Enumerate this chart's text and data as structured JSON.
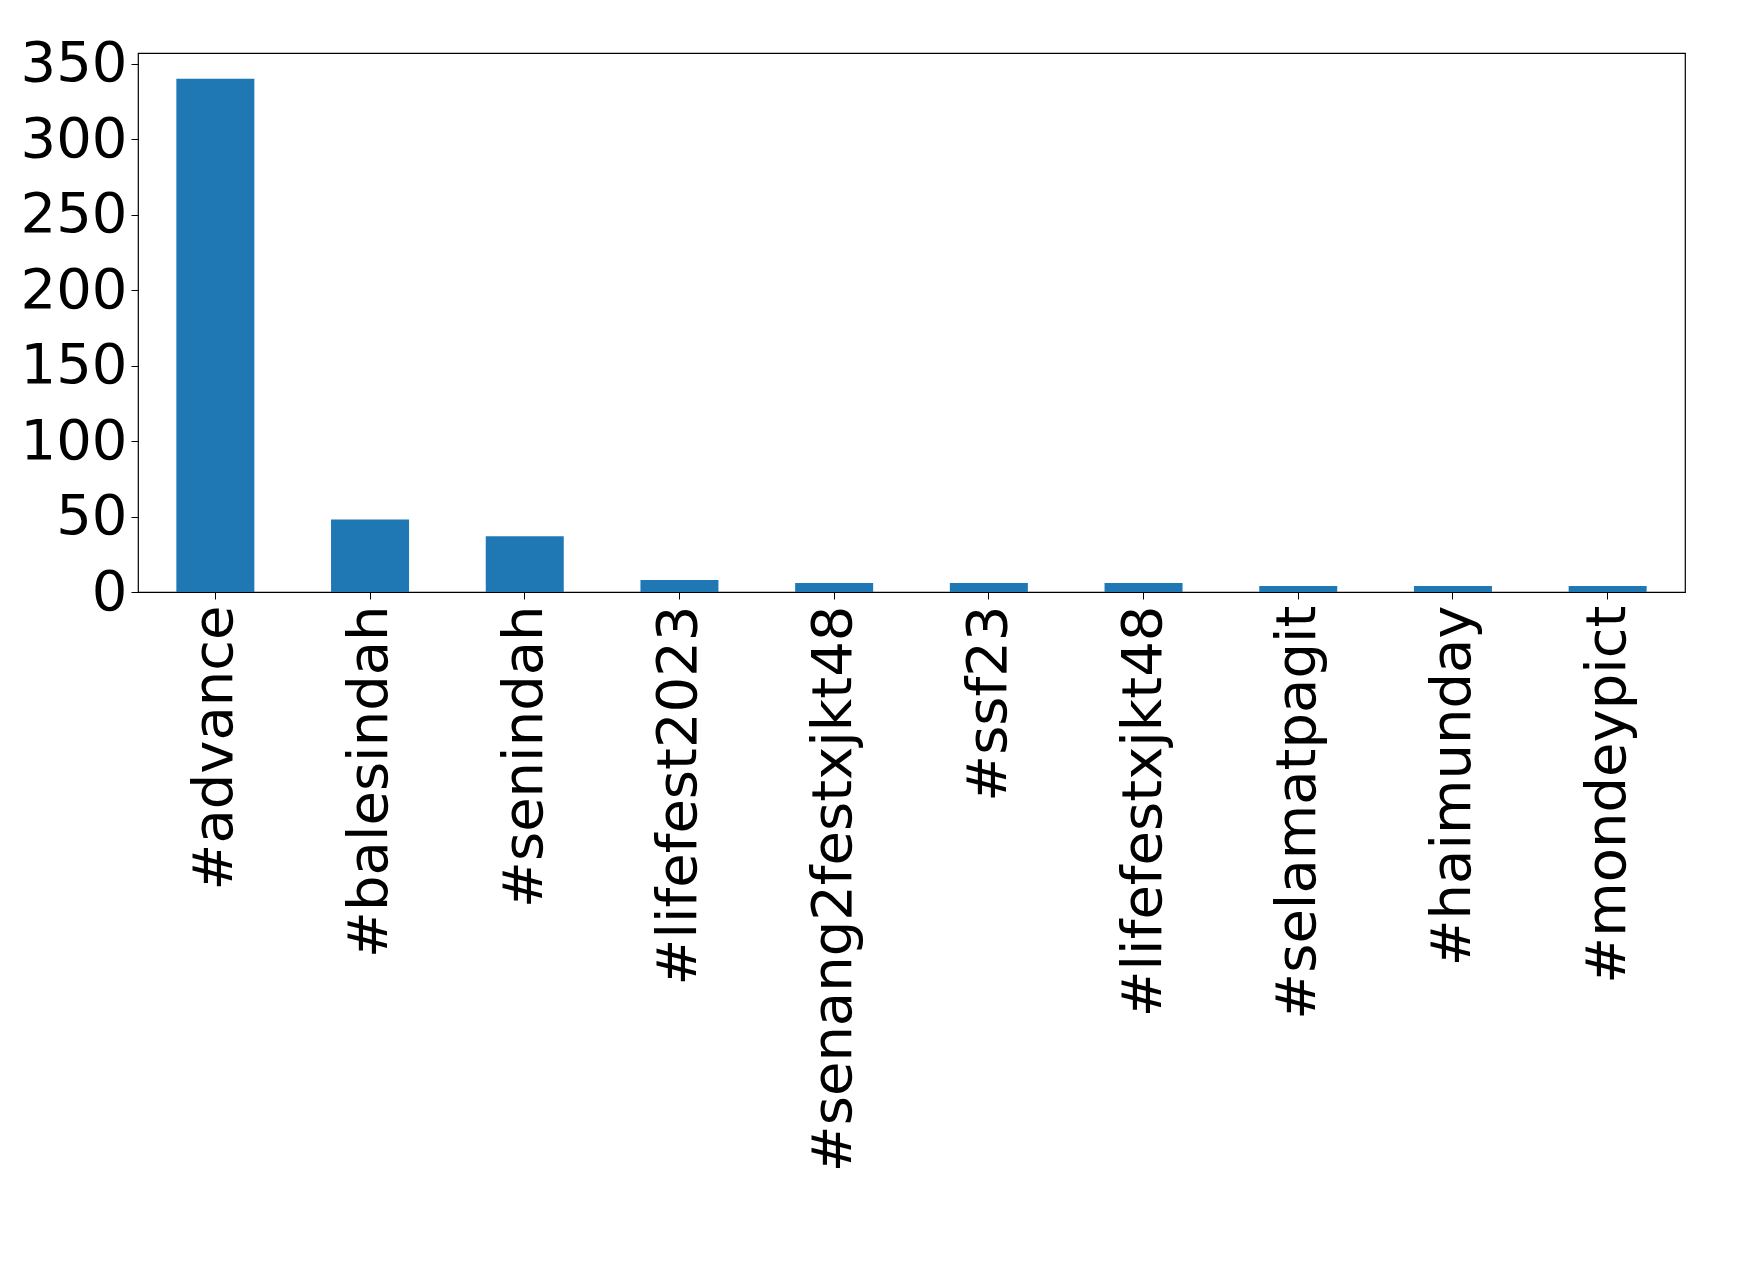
{
  "chart_data": {
    "type": "bar",
    "categories": [
      "#advance",
      "#balesindah",
      "#senindah",
      "#lifefest2023",
      "#senang2festxjkt48",
      "#ssf23",
      "#lifefestxjkt48",
      "#selamatpagit",
      "#haimunday",
      "#mondeypict"
    ],
    "values": [
      340,
      48,
      37,
      8,
      6,
      6,
      6,
      4,
      4,
      4
    ],
    "color": "#1f77b4",
    "ylim": [
      0,
      357
    ],
    "yticks": [
      0,
      50,
      100,
      150,
      200,
      250,
      300,
      350
    ],
    "grid": false
  }
}
